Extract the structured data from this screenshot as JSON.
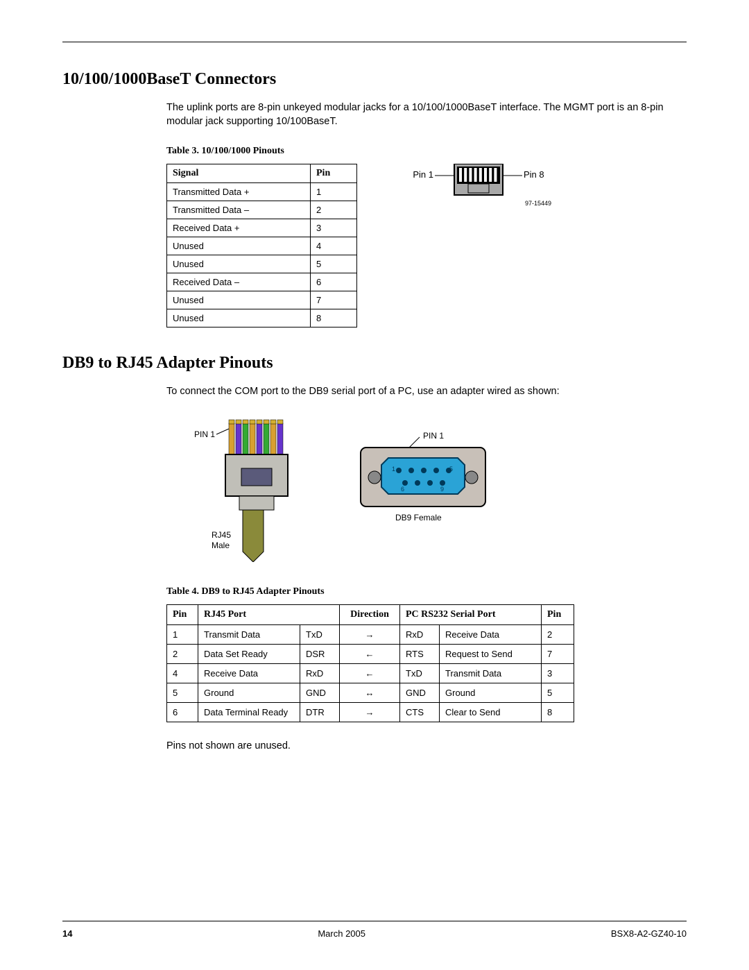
{
  "section1": {
    "heading": "10/100/1000BaseT Connectors",
    "para": "The uplink ports are 8-pin unkeyed modular jacks for a 10/100/1000BaseT interface. The MGMT port is an 8-pin modular jack supporting 10/100BaseT.",
    "table_caption": "Table 3.   10/100/1000 Pinouts",
    "table": {
      "headers": [
        "Signal",
        "Pin"
      ],
      "rows": [
        [
          "Transmitted Data +",
          "1"
        ],
        [
          "Transmitted Data –",
          "2"
        ],
        [
          "Received Data +",
          "3"
        ],
        [
          "Unused",
          "4"
        ],
        [
          "Unused",
          "5"
        ],
        [
          "Received Data –",
          "6"
        ],
        [
          "Unused",
          "7"
        ],
        [
          "Unused",
          "8"
        ]
      ]
    },
    "jack_diagram": {
      "left_label": "Pin 1",
      "right_label": "Pin 8",
      "fig_num": "97-15449",
      "jack_fill": "#a8a8a8",
      "contact_fill": "#ffffff",
      "outer": "#000000"
    }
  },
  "section2": {
    "heading": "DB9 to RJ45 Adapter Pinouts",
    "para": "To connect the COM port to the DB9 serial port of a PC, use an adapter wired as shown:",
    "fig": {
      "rj45_label_pin": "PIN 1",
      "rj45_label_name": "RJ45\nMale",
      "db9_label_pin": "PIN 1",
      "db9_label_name": "DB9 Female",
      "wire_colors": [
        "#d8a030",
        "#6633cc",
        "#33aa33",
        "#d8a030",
        "#6633cc",
        "#33aa33",
        "#d8a030",
        "#6633cc"
      ],
      "rj45_body": "#c0bfb8",
      "rj45_clip": "#5a5a7a",
      "cable": "#8a8a3a",
      "db9_body": "#c8c0b8",
      "db9_face": "#2aa3d6"
    },
    "table_caption": "Table 4.   DB9 to RJ45 Adapter Pinouts",
    "table": {
      "headers": [
        "Pin",
        "RJ45 Port",
        "Direction",
        "PC RS232 Serial Port",
        "Pin"
      ],
      "rows": [
        [
          "1",
          "Transmit Data",
          "TxD",
          "→",
          "RxD",
          "Receive Data",
          "2"
        ],
        [
          "2",
          "Data Set Ready",
          "DSR",
          "←",
          "RTS",
          "Request to Send",
          "7"
        ],
        [
          "4",
          "Receive Data",
          "RxD",
          "←",
          "TxD",
          "Transmit Data",
          "3"
        ],
        [
          "5",
          "Ground",
          "GND",
          "↔",
          "GND",
          "Ground",
          "5"
        ],
        [
          "6",
          "Data Terminal Ready",
          "DTR",
          "→",
          "CTS",
          "Clear to Send",
          "8"
        ]
      ]
    },
    "note": "Pins not shown are unused."
  },
  "footer": {
    "page_num": "14",
    "date": "March 2005",
    "doc_id": "BSX8-A2-GZ40-10"
  }
}
